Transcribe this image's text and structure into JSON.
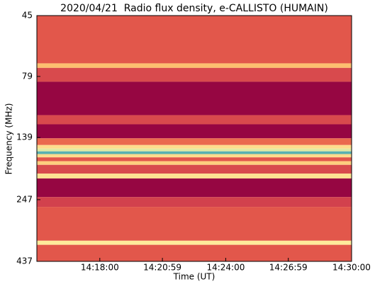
{
  "chart_data": {
    "type": "spectrogram",
    "title": "2020/04/21  Radio flux density, e-CALLISTO (HUMAIN)",
    "xlabel": "Time (UT)",
    "ylabel": "Frequency (MHz)",
    "xlim": [
      "14:15:00",
      "14:30:00"
    ],
    "xticks": [
      "14:18:00",
      "14:20:59",
      "14:24:00",
      "14:26:59",
      "14:30:00"
    ],
    "ylim": [
      45,
      437
    ],
    "y_inverted": true,
    "log_y": true,
    "yticks": [
      45,
      79,
      139,
      247,
      437
    ],
    "colormap": [
      "#8f0040",
      "#c8334f",
      "#e8604a",
      "#fdbf6f",
      "#fef0a0",
      "#9fd9a8",
      "#3aa0b5"
    ],
    "bands": [
      {
        "f_low": 45,
        "f_high": 70,
        "level": 0.3
      },
      {
        "f_low": 70,
        "f_high": 73,
        "level": 0.5
      },
      {
        "f_low": 73,
        "f_high": 83,
        "level": 0.25
      },
      {
        "f_low": 83,
        "f_high": 113,
        "level": 0.02
      },
      {
        "f_low": 113,
        "f_high": 123,
        "level": 0.25
      },
      {
        "f_low": 123,
        "f_high": 140,
        "level": 0.02
      },
      {
        "f_low": 140,
        "f_high": 149,
        "level": 0.35
      },
      {
        "f_low": 149,
        "f_high": 154,
        "level": 0.6
      },
      {
        "f_low": 154,
        "f_high": 158,
        "level": 0.72
      },
      {
        "f_low": 158,
        "f_high": 162,
        "level": 0.95
      },
      {
        "f_low": 162,
        "f_high": 167,
        "level": 0.6
      },
      {
        "f_low": 167,
        "f_high": 173,
        "level": 0.3
      },
      {
        "f_low": 173,
        "f_high": 179,
        "level": 0.55
      },
      {
        "f_low": 179,
        "f_high": 194,
        "level": 0.25
      },
      {
        "f_low": 194,
        "f_high": 203,
        "level": 0.62
      },
      {
        "f_low": 203,
        "f_high": 241,
        "level": 0.02
      },
      {
        "f_low": 241,
        "f_high": 264,
        "level": 0.22
      },
      {
        "f_low": 264,
        "f_high": 361,
        "level": 0.3
      },
      {
        "f_low": 361,
        "f_high": 375,
        "level": 0.65
      },
      {
        "f_low": 375,
        "f_high": 437,
        "level": 0.3
      }
    ]
  }
}
